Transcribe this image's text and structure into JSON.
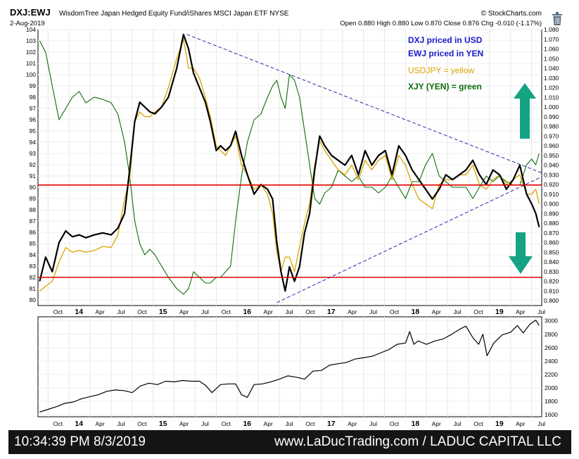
{
  "header": {
    "symbol": "DXJ:EWJ",
    "description": "WisdomTree Japan Hedged Equity Fund/iShares MSCI Japan ETF  NYSE",
    "source": "© StockCharts.com",
    "date": "2-Aug-2019",
    "quote": "Open 0.880  High 0.880  Low 0.870  Close 0.876  Chg -0.010 (-1.17%)",
    "icon": "trash-icon"
  },
  "annotations": {
    "line1": "DXJ priced in USD",
    "line2": "EWJ priced in YEN",
    "line3": "USDJPY = yellow",
    "line4": "XJY (YEN) = green"
  },
  "colors": {
    "ratio": "#000000",
    "usdjpy": "#d9a400",
    "xjy": "#0a6e0a",
    "horizontal_lines": "#e00000",
    "trendlines": "#2a2aa8",
    "arrows": "#14a383",
    "blue_text": "#1a1acc",
    "footer_bg": "#151515"
  },
  "footer": {
    "timestamp": "10:34:39 PM 8/3/2019",
    "credit": "www.LaDucTrading.com / LADUC CAPITAL LLC"
  },
  "chart_data": [
    {
      "type": "line",
      "title": "DXJ:EWJ",
      "x_tick_labels": [
        "Oct",
        "14",
        "Apr",
        "Jul",
        "Oct",
        "15",
        "Apr",
        "Jul",
        "Oct",
        "16",
        "Apr",
        "Jul",
        "Oct",
        "17",
        "Apr",
        "Jul",
        "Oct",
        "18",
        "Apr",
        "Jul",
        "Oct",
        "19",
        "Apr",
        "Jul"
      ],
      "left_axis": {
        "label": "",
        "range": [
          79.5,
          104
        ],
        "ticks": [
          80,
          81,
          82,
          83,
          84,
          85,
          86,
          87,
          88,
          89,
          90,
          91,
          92,
          93,
          94,
          95,
          96,
          97,
          98,
          99,
          100,
          101,
          102,
          103,
          104
        ]
      },
      "right_axis": {
        "label": "",
        "range": [
          0.795,
          1.08
        ],
        "ticks": [
          0.8,
          0.81,
          0.82,
          0.83,
          0.84,
          0.85,
          0.86,
          0.87,
          0.88,
          0.89,
          0.9,
          0.91,
          0.92,
          0.93,
          0.94,
          0.95,
          0.96,
          0.97,
          0.98,
          0.99,
          1.0,
          1.01,
          1.02,
          1.03,
          1.04,
          1.05,
          1.06,
          1.07,
          1.08
        ]
      },
      "x_range": [
        2013.63,
        2019.62
      ],
      "series": [
        {
          "axis": "right",
          "x": [
            2013.65,
            2013.72,
            2013.8,
            2013.88,
            2013.96,
            2014.04,
            2014.12,
            2014.2,
            2014.3,
            2014.4,
            2014.5,
            2014.58,
            2014.66,
            2014.72,
            2014.78,
            2014.84,
            2014.9,
            2014.96,
            2015.02,
            2015.1,
            2015.18,
            2015.28,
            2015.36,
            2015.42,
            2015.48,
            2015.55,
            2015.62,
            2015.68,
            2015.75,
            2015.8,
            2015.86,
            2015.92,
            2015.98,
            2016.05,
            2016.12,
            2016.2,
            2016.28,
            2016.36,
            2016.42,
            2016.47,
            2016.52,
            2016.57,
            2016.62,
            2016.68,
            2016.74,
            2016.8,
            2016.86,
            2016.92,
            2016.98,
            2017.04,
            2017.12,
            2017.2,
            2017.28,
            2017.36,
            2017.44,
            2017.52,
            2017.6,
            2017.68,
            2017.76,
            2017.84,
            2017.92,
            2018.0,
            2018.08,
            2018.16,
            2018.24,
            2018.32,
            2018.4,
            2018.48,
            2018.56,
            2018.64,
            2018.72,
            2018.8,
            2018.88,
            2018.96,
            2019.04,
            2019.12,
            2019.2,
            2019.28,
            2019.36,
            2019.44,
            2019.5,
            2019.55,
            2019.59
          ],
          "y": [
            0.82,
            0.845,
            0.83,
            0.86,
            0.872,
            0.866,
            0.868,
            0.865,
            0.868,
            0.87,
            0.868,
            0.875,
            0.89,
            0.935,
            0.985,
            1.005,
            1.0,
            0.995,
            0.993,
            1.0,
            1.01,
            1.04,
            1.075,
            1.06,
            1.035,
            1.02,
            1.005,
            0.985,
            0.955,
            0.96,
            0.955,
            0.96,
            0.975,
            0.95,
            0.93,
            0.91,
            0.92,
            0.915,
            0.905,
            0.86,
            0.83,
            0.81,
            0.835,
            0.82,
            0.835,
            0.87,
            0.89,
            0.935,
            0.97,
            0.96,
            0.95,
            0.945,
            0.94,
            0.95,
            0.93,
            0.955,
            0.94,
            0.95,
            0.955,
            0.93,
            0.96,
            0.95,
            0.935,
            0.925,
            0.915,
            0.905,
            0.915,
            0.93,
            0.925,
            0.93,
            0.935,
            0.945,
            0.93,
            0.92,
            0.935,
            0.93,
            0.915,
            0.925,
            0.94,
            0.91,
            0.9,
            0.89,
            0.876
          ]
        },
        {
          "axis": "right",
          "x": [
            2013.65,
            2013.72,
            2013.8,
            2013.88,
            2013.96,
            2014.04,
            2014.12,
            2014.2,
            2014.3,
            2014.4,
            2014.5,
            2014.58,
            2014.66,
            2014.72,
            2014.78,
            2014.84,
            2014.9,
            2014.96,
            2015.02,
            2015.1,
            2015.18,
            2015.28,
            2015.36,
            2015.42,
            2015.48,
            2015.55,
            2015.62,
            2015.68,
            2015.75,
            2015.8,
            2015.86,
            2015.92,
            2015.98,
            2016.05,
            2016.12,
            2016.2,
            2016.28,
            2016.36,
            2016.42,
            2016.47,
            2016.52,
            2016.57,
            2016.62,
            2016.68,
            2016.74,
            2016.8,
            2016.86,
            2016.92,
            2016.98,
            2017.04,
            2017.12,
            2017.2,
            2017.28,
            2017.36,
            2017.44,
            2017.52,
            2017.6,
            2017.68,
            2017.76,
            2017.84,
            2017.92,
            2018.0,
            2018.08,
            2018.16,
            2018.24,
            2018.32,
            2018.4,
            2018.48,
            2018.56,
            2018.64,
            2018.72,
            2018.8,
            2018.88,
            2018.96,
            2019.04,
            2019.12,
            2019.2,
            2019.28,
            2019.36,
            2019.44,
            2019.5,
            2019.55,
            2019.59
          ],
          "y": [
            0.81,
            0.815,
            0.82,
            0.84,
            0.855,
            0.85,
            0.852,
            0.85,
            0.852,
            0.856,
            0.855,
            0.868,
            0.905,
            0.925,
            0.985,
            0.995,
            0.99,
            0.99,
            0.995,
            1.0,
            1.02,
            1.05,
            1.07,
            1.04,
            1.04,
            1.03,
            1.01,
            0.99,
            0.96,
            0.955,
            0.95,
            0.96,
            0.97,
            0.94,
            0.93,
            0.915,
            0.92,
            0.91,
            0.89,
            0.85,
            0.83,
            0.845,
            0.845,
            0.83,
            0.855,
            0.88,
            0.9,
            0.94,
            0.965,
            0.955,
            0.945,
            0.935,
            0.93,
            0.94,
            0.925,
            0.945,
            0.935,
            0.945,
            0.95,
            0.925,
            0.95,
            0.94,
            0.92,
            0.905,
            0.9,
            0.895,
            0.92,
            0.925,
            0.925,
            0.93,
            0.93,
            0.94,
            0.92,
            0.915,
            0.925,
            0.93,
            0.92,
            0.925,
            0.93,
            0.91,
            0.91,
            0.915,
            0.9
          ]
        },
        {
          "axis": "left",
          "x": [
            2013.65,
            2013.72,
            2013.8,
            2013.88,
            2013.96,
            2014.04,
            2014.12,
            2014.2,
            2014.3,
            2014.4,
            2014.5,
            2014.58,
            2014.66,
            2014.72,
            2014.78,
            2014.84,
            2014.9,
            2014.96,
            2015.02,
            2015.1,
            2015.18,
            2015.28,
            2015.36,
            2015.42,
            2015.48,
            2015.55,
            2015.62,
            2015.68,
            2015.75,
            2015.8,
            2015.86,
            2015.92,
            2015.98,
            2016.05,
            2016.12,
            2016.2,
            2016.28,
            2016.36,
            2016.42,
            2016.47,
            2016.52,
            2016.57,
            2016.62,
            2016.68,
            2016.74,
            2016.8,
            2016.86,
            2016.92,
            2016.98,
            2017.04,
            2017.12,
            2017.2,
            2017.28,
            2017.36,
            2017.44,
            2017.52,
            2017.6,
            2017.68,
            2017.76,
            2017.84,
            2017.92,
            2018.0,
            2018.08,
            2018.16,
            2018.24,
            2018.32,
            2018.4,
            2018.48,
            2018.56,
            2018.64,
            2018.72,
            2018.8,
            2018.88,
            2018.96,
            2019.04,
            2019.12,
            2019.2,
            2019.28,
            2019.36,
            2019.44,
            2019.5,
            2019.55,
            2019.59
          ],
          "y": [
            103,
            102,
            99,
            96,
            97,
            98,
            98.5,
            97.5,
            98,
            97.8,
            97.5,
            96.5,
            94,
            91,
            87,
            85,
            84,
            84.5,
            84,
            83,
            82,
            81,
            80.5,
            81,
            82.5,
            82,
            81.5,
            81.5,
            82,
            82,
            82.5,
            83,
            87,
            91,
            94,
            96,
            96.5,
            98,
            99,
            99.5,
            98,
            97,
            100,
            99.5,
            98,
            95,
            92,
            89,
            88.5,
            89.5,
            90,
            91.5,
            91,
            90.5,
            91,
            90,
            90,
            89.5,
            90,
            91,
            90,
            89,
            90.5,
            90.5,
            92,
            93,
            91,
            90.5,
            90,
            90,
            90,
            89,
            90,
            91,
            90.5,
            91,
            90.5,
            90.2,
            90.2,
            92,
            92.5,
            92,
            93
          ]
        }
      ]
    },
    {
      "type": "line",
      "title": "",
      "y_ticks": [
        1600,
        1800,
        2000,
        2200,
        2400,
        2600,
        2800,
        3000
      ],
      "ylim": [
        1570,
        3060
      ],
      "series": [
        {
          "x": [
            2013.65,
            2013.75,
            2013.85,
            2013.95,
            2014.05,
            2014.15,
            2014.25,
            2014.35,
            2014.45,
            2014.55,
            2014.65,
            2014.75,
            2014.85,
            2014.95,
            2015.05,
            2015.15,
            2015.25,
            2015.35,
            2015.45,
            2015.55,
            2015.62,
            2015.7,
            2015.8,
            2015.9,
            2015.98,
            2016.05,
            2016.12,
            2016.2,
            2016.3,
            2016.4,
            2016.5,
            2016.6,
            2016.7,
            2016.8,
            2016.9,
            2017.0,
            2017.1,
            2017.2,
            2017.3,
            2017.4,
            2017.5,
            2017.6,
            2017.7,
            2017.8,
            2017.9,
            2018.0,
            2018.05,
            2018.1,
            2018.15,
            2018.25,
            2018.35,
            2018.45,
            2018.55,
            2018.65,
            2018.72,
            2018.8,
            2018.87,
            2018.92,
            2018.97,
            2019.05,
            2019.15,
            2019.25,
            2019.33,
            2019.4,
            2019.48,
            2019.55,
            2019.59
          ],
          "y": [
            1640,
            1680,
            1720,
            1770,
            1790,
            1840,
            1870,
            1900,
            1950,
            1970,
            1960,
            1930,
            2030,
            2070,
            2050,
            2100,
            2090,
            2110,
            2100,
            2100,
            2040,
            1930,
            2050,
            2060,
            2060,
            1900,
            1860,
            2050,
            2060,
            2090,
            2130,
            2180,
            2160,
            2130,
            2250,
            2260,
            2340,
            2360,
            2380,
            2430,
            2450,
            2470,
            2520,
            2570,
            2650,
            2670,
            2840,
            2650,
            2700,
            2650,
            2700,
            2730,
            2800,
            2880,
            2920,
            2750,
            2650,
            2800,
            2480,
            2670,
            2790,
            2830,
            2930,
            2820,
            2950,
            3010,
            2930
          ]
        }
      ]
    }
  ]
}
